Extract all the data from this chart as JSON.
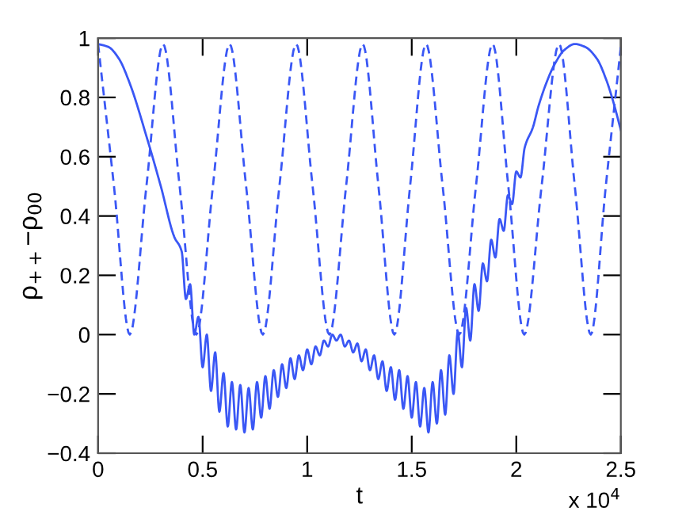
{
  "chart_data": {
    "type": "line",
    "xlabel": "t",
    "ylabel": "ρ$_{++}$−ρ$_{00}$",
    "annotations": [
      "x 10$^{4}$"
    ],
    "xlim": [
      0,
      2.5
    ],
    "xticks": [
      0,
      0.5,
      1,
      1.5,
      2,
      2.5
    ],
    "ylim": [
      -0.4,
      1
    ],
    "yticks": [
      {
        "value": -0.4,
        "label": "−0.4"
      },
      {
        "value": -0.2,
        "label": "−0.2"
      },
      0,
      0.2,
      0.4,
      0.6,
      0.8,
      1
    ],
    "grid": false,
    "series": [
      {
        "color": "#3a57f5",
        "line_style": "solid",
        "x": [
          0,
          0.05,
          0.1,
          0.15,
          0.235,
          0.3,
          0.364,
          0.4,
          0.42,
          0.44,
          0.46,
          0.48,
          0.5,
          0.52,
          0.54,
          0.56,
          0.58,
          0.6,
          0.62,
          0.64,
          0.66,
          0.68,
          0.7,
          0.72,
          0.74,
          0.76,
          0.78,
          0.8,
          0.82,
          0.84,
          0.86,
          0.88,
          0.9,
          0.92,
          0.94,
          0.96,
          0.98,
          1.0,
          1.02,
          1.04,
          1.06,
          1.08,
          1.1,
          1.12,
          1.14,
          1.16,
          1.18,
          1.2,
          1.22,
          1.24,
          1.26,
          1.28,
          1.3,
          1.32,
          1.34,
          1.36,
          1.38,
          1.4,
          1.42,
          1.44,
          1.46,
          1.48,
          1.5,
          1.52,
          1.54,
          1.56,
          1.58,
          1.6,
          1.62,
          1.64,
          1.66,
          1.68,
          1.7,
          1.72,
          1.74,
          1.76,
          1.78,
          1.8,
          1.82,
          1.84,
          1.86,
          1.88,
          1.9,
          1.92,
          1.94,
          1.96,
          1.98,
          2.0,
          2.02,
          2.04,
          2.08,
          2.106,
          2.15,
          2.182,
          2.23,
          2.28,
          2.33,
          2.386,
          2.43,
          2.462,
          2.5
        ],
        "values": [
          0.98,
          0.97,
          0.93,
          0.85,
          0.66,
          0.5,
          0.33,
          0.28,
          0.12,
          0.17,
          0.0,
          0.06,
          -0.11,
          0.0,
          -0.19,
          -0.06,
          -0.26,
          -0.13,
          -0.31,
          -0.16,
          -0.32,
          -0.17,
          -0.33,
          -0.18,
          -0.32,
          -0.16,
          -0.28,
          -0.14,
          -0.25,
          -0.12,
          -0.21,
          -0.1,
          -0.18,
          -0.08,
          -0.15,
          -0.07,
          -0.12,
          -0.05,
          -0.1,
          -0.04,
          -0.07,
          -0.02,
          -0.04,
          0.0,
          -0.02,
          0.0,
          -0.04,
          -0.02,
          -0.06,
          -0.03,
          -0.09,
          -0.05,
          -0.12,
          -0.07,
          -0.15,
          -0.09,
          -0.19,
          -0.11,
          -0.22,
          -0.12,
          -0.25,
          -0.14,
          -0.28,
          -0.16,
          -0.31,
          -0.18,
          -0.33,
          -0.16,
          -0.3,
          -0.12,
          -0.27,
          -0.07,
          -0.2,
          0.01,
          -0.11,
          0.09,
          -0.02,
          0.17,
          0.08,
          0.24,
          0.18,
          0.32,
          0.26,
          0.39,
          0.35,
          0.47,
          0.44,
          0.55,
          0.53,
          0.63,
          0.7,
          0.77,
          0.86,
          0.91,
          0.96,
          0.98,
          0.97,
          0.93,
          0.86,
          0.79,
          0.69
        ]
      },
      {
        "color": "#3a57f5",
        "line_style": "dashed",
        "x": [
          0,
          0.076,
          0.1515,
          0.231,
          0.3106,
          0.39,
          0.4697,
          0.549,
          0.6288,
          0.708,
          0.7879,
          0.867,
          0.947,
          1.026,
          1.1061,
          1.186,
          1.2652,
          1.341,
          1.4167,
          1.492,
          1.5682,
          1.648,
          1.7273,
          1.807,
          1.8864,
          1.962,
          2.0379,
          2.121,
          2.2045,
          2.28,
          2.3561,
          2.428,
          2.5
        ],
        "values": [
          0.98,
          0.5,
          0,
          0.5,
          0.98,
          0.5,
          0,
          0.5,
          0.98,
          0.5,
          0,
          0.5,
          0.98,
          0.5,
          0,
          0.5,
          0.98,
          0.5,
          0,
          0.5,
          0.98,
          0.5,
          0,
          0.5,
          0.98,
          0.5,
          0,
          0.5,
          0.98,
          0.5,
          0,
          0.5,
          0.97
        ]
      }
    ]
  }
}
